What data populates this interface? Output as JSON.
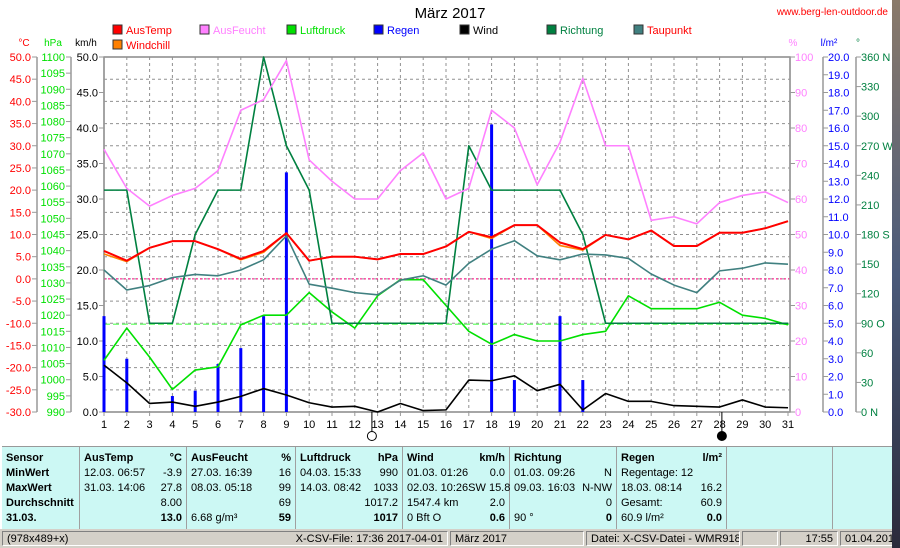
{
  "header": {
    "title": "März 2017",
    "url": "www.berg-len-outdoor.de"
  },
  "chart_data": {
    "type": "line",
    "title": "März 2017",
    "x": [
      1,
      2,
      3,
      4,
      5,
      6,
      7,
      8,
      9,
      10,
      11,
      12,
      13,
      14,
      15,
      16,
      17,
      18,
      19,
      20,
      21,
      22,
      23,
      24,
      25,
      26,
      27,
      28,
      29,
      30,
      31
    ],
    "x_tick_labels": [
      "1",
      "2",
      "3",
      "4",
      "5",
      "6",
      "7",
      "8",
      "9",
      "10",
      "11",
      "12",
      "13",
      "14",
      "15",
      "16",
      "17",
      "18",
      "19",
      "20",
      "21",
      "22",
      "23",
      "24",
      "25",
      "26",
      "27",
      "28",
      "29",
      "30",
      "31"
    ],
    "grid": true,
    "axes": {
      "temp": {
        "unit": "°C",
        "color": "#ff0000",
        "range": [
          -30,
          50
        ],
        "labels": [
          "50.0",
          "45.0",
          "40.0",
          "35.0",
          "30.0",
          "25.0",
          "20.0",
          "15.0",
          "10.0",
          "5.0",
          "0.0",
          "-5.0",
          "-10.0",
          "-15.0",
          "-20.0",
          "-25.0",
          "-30.0"
        ]
      },
      "pressure": {
        "unit": "hPa",
        "color": "#00e000",
        "range": [
          990,
          1100
        ],
        "labels": [
          "1100",
          "1095",
          "1090",
          "1085",
          "1080",
          "1075",
          "1070",
          "1065",
          "1060",
          "1055",
          "1050",
          "1045",
          "1040",
          "1035",
          "1030",
          "1025",
          "1020",
          "1015",
          "1010",
          "1005",
          "1000",
          "995",
          "990"
        ]
      },
      "wind": {
        "unit": "km/h",
        "color": "#000000",
        "range": [
          0,
          50
        ],
        "labels": [
          "50.0",
          "45.0",
          "40.0",
          "35.0",
          "30.0",
          "25.0",
          "20.0",
          "15.0",
          "10.0",
          "5.0",
          "0.0"
        ]
      },
      "humidity": {
        "unit": "%",
        "color": "#ff80ff",
        "range": [
          0,
          100
        ],
        "labels": [
          "100",
          "90",
          "80",
          "70",
          "60",
          "50",
          "40",
          "30",
          "20",
          "10",
          "0"
        ]
      },
      "rain": {
        "unit": "l/m²",
        "color": "#0000ff",
        "range": [
          0,
          20
        ],
        "labels": [
          "20.0",
          "19.0",
          "18.0",
          "17.0",
          "16.0",
          "15.0",
          "14.0",
          "13.0",
          "12.0",
          "11.0",
          "10.0",
          "9.0",
          "8.0",
          "7.0",
          "6.0",
          "5.0",
          "4.0",
          "3.0",
          "2.0",
          "1.0",
          "0.0"
        ]
      },
      "direction": {
        "unit": "°",
        "color": "#008040",
        "range": [
          0,
          360
        ],
        "labels": [
          "360 N",
          "330",
          "300",
          "270 W",
          "240",
          "210",
          "180 S",
          "150",
          "120",
          "90 O",
          "60",
          "30",
          "0 N"
        ]
      }
    },
    "series": [
      {
        "name": "AusTemp",
        "axis": "temp",
        "color": "#ff0000",
        "legend_text_color": "#ff0000",
        "kind": "line",
        "values": [
          6.3,
          4.1,
          7.0,
          8.5,
          8.5,
          6.7,
          4.5,
          6.3,
          10.3,
          4.1,
          5.0,
          5.0,
          4.4,
          5.6,
          5.6,
          7.3,
          10.6,
          9.4,
          12.1,
          12.1,
          8.2,
          6.7,
          9.9,
          8.9,
          10.9,
          7.4,
          7.4,
          10.4,
          10.4,
          11.4,
          13.0
        ]
      },
      {
        "name": "Windchill",
        "axis": "temp",
        "color": "#ff8000",
        "legend_text_color": "#ff0000",
        "kind": "line",
        "values": [
          5.6,
          3.9,
          7.0,
          8.5,
          8.5,
          6.7,
          4.3,
          6.0,
          10.3,
          4.1,
          5.0,
          5.0,
          4.4,
          5.6,
          5.6,
          7.3,
          10.6,
          9.1,
          12.1,
          12.1,
          7.5,
          6.5,
          9.9,
          8.9,
          10.9,
          7.4,
          7.4,
          10.4,
          10.4,
          11.4,
          13.0
        ]
      },
      {
        "name": "AusFeucht",
        "axis": "humidity",
        "color": "#ff80ff",
        "legend_text_color": "#ff80ff",
        "kind": "line",
        "values": [
          74,
          63,
          58,
          61,
          63,
          68,
          85,
          88,
          99,
          71,
          65,
          60,
          60,
          68,
          73,
          60,
          63,
          85,
          80,
          64,
          76,
          94,
          75,
          75,
          54,
          55,
          53,
          59,
          61,
          62,
          59
        ]
      },
      {
        "name": "Luftdruck",
        "axis": "pressure",
        "color": "#00e000",
        "legend_text_color": "#00e000",
        "kind": "line",
        "values": [
          1006,
          1016,
          1007,
          997,
          1003,
          1004,
          1017,
          1020,
          1020,
          1027,
          1021,
          1016,
          1026,
          1031,
          1031,
          1023,
          1015,
          1011,
          1014,
          1012,
          1012,
          1014,
          1015,
          1026,
          1022,
          1022,
          1022,
          1024,
          1020,
          1019,
          1017
        ]
      },
      {
        "name": "Regen",
        "axis": "rain",
        "color": "#0000ff",
        "legend_text_color": "#0000ff",
        "kind": "bar",
        "values": [
          5.4,
          3.0,
          0,
          0.9,
          1.2,
          2.7,
          3.6,
          5.4,
          13.5,
          0,
          0,
          0,
          0,
          0,
          0,
          0,
          0,
          16.2,
          1.8,
          0,
          5.4,
          1.8,
          0,
          0,
          0,
          0,
          0,
          0,
          0,
          0,
          0
        ]
      },
      {
        "name": "Wind",
        "axis": "wind",
        "color": "#000000",
        "legend_text_color": "#000000",
        "kind": "line",
        "values": [
          6.6,
          4.1,
          1.2,
          1.4,
          0.8,
          1.4,
          2.2,
          3.3,
          2.4,
          1.3,
          0.7,
          0.8,
          0.0,
          1.2,
          0.2,
          0.3,
          4.5,
          4.4,
          5.1,
          3.0,
          3.9,
          0.3,
          2.6,
          1.5,
          1.5,
          0.9,
          0.8,
          0.7,
          1.7,
          0.7,
          0.6
        ]
      },
      {
        "name": "Richtung",
        "axis": "direction",
        "color": "#008040",
        "legend_text_color": "#008040",
        "kind": "line",
        "values": [
          225,
          225,
          90,
          90,
          180,
          225,
          225,
          360,
          270,
          225,
          90,
          90,
          90,
          90,
          90,
          90,
          270,
          225,
          225,
          225,
          225,
          180,
          90,
          90,
          90,
          90,
          90,
          90,
          90,
          90,
          90
        ]
      },
      {
        "name": "Taupunkt",
        "axis": "temp",
        "color": "#408080",
        "legend_text_color": "#ff0000",
        "kind": "line",
        "values": [
          2.0,
          -2.5,
          -1.5,
          0.3,
          1.0,
          0.7,
          2.0,
          4.3,
          9.7,
          -1.2,
          -2.1,
          -3.1,
          -3.6,
          -0.3,
          0.7,
          -1.4,
          3.5,
          6.7,
          8.6,
          5.2,
          4.3,
          5.6,
          5.4,
          4.6,
          1.1,
          -1.4,
          -3.1,
          1.8,
          2.4,
          3.6,
          3.3
        ]
      }
    ],
    "reference_lines": [
      {
        "axis": "temp",
        "value": 0,
        "color": "#ff0080"
      },
      {
        "axis": "pressure",
        "value": 1017.2,
        "color": "#80ff80"
      }
    ],
    "moon_phases": [
      {
        "day": 12.75,
        "phase": "full"
      },
      {
        "day": 28.1,
        "phase": "new"
      }
    ]
  },
  "table": {
    "sensor": {
      "title": "Sensor",
      "rows": [
        "MinWert",
        "MaxWert",
        "Durchschnitt",
        "31.03."
      ]
    },
    "columns": [
      {
        "title": "AusTemp",
        "unit": "°C",
        "rows": [
          [
            "12.03.  06:57",
            "-3.9"
          ],
          [
            "31.03.  14:06",
            "27.8"
          ],
          [
            "",
            "8.00"
          ],
          [
            "",
            "13.0"
          ]
        ]
      },
      {
        "title": "AusFeucht",
        "unit": "%",
        "rows": [
          [
            "27.03.  16:39",
            "16"
          ],
          [
            "08.03.  05:18",
            "99"
          ],
          [
            "",
            "69"
          ],
          [
            "6.68 g/m³",
            "59"
          ]
        ]
      },
      {
        "title": "Luftdruck",
        "unit": "hPa",
        "rows": [
          [
            "04.03.  15:33",
            "990"
          ],
          [
            "14.03.  08:42",
            "1033"
          ],
          [
            "",
            "1017.2"
          ],
          [
            "",
            "1017"
          ]
        ]
      },
      {
        "title": "Wind",
        "unit": "km/h",
        "rows": [
          [
            "01.03.  01:26",
            "0.0"
          ],
          [
            "02.03.  10:26",
            "SW 15.8"
          ],
          [
            "1547.4 km",
            "2.0"
          ],
          [
            "0 Bft O",
            "0.6"
          ]
        ]
      },
      {
        "title": "Richtung",
        "unit": "",
        "rows": [
          [
            "01.03.  09:26",
            "N"
          ],
          [
            "09.03.  16:03",
            "N-NW"
          ],
          [
            "",
            "0"
          ],
          [
            "90 °",
            "0"
          ]
        ]
      },
      {
        "title": "Regen",
        "unit": "l/m²",
        "rows": [
          [
            "Regentage: 12",
            ""
          ],
          [
            "18.03.  08:14",
            "16.2"
          ],
          [
            "Gesamt:",
            "60.9"
          ],
          [
            "60.9 l/m²",
            "0.0"
          ]
        ]
      }
    ]
  },
  "status": {
    "size": "(978x489+x)",
    "file": "X-CSV-File:  17:36  2017-04-01",
    "month": "März 2017",
    "source": "Datei: X-CSV-Datei - WMR918N",
    "empty": "",
    "time": "17:55",
    "date": "01.04.2017"
  }
}
